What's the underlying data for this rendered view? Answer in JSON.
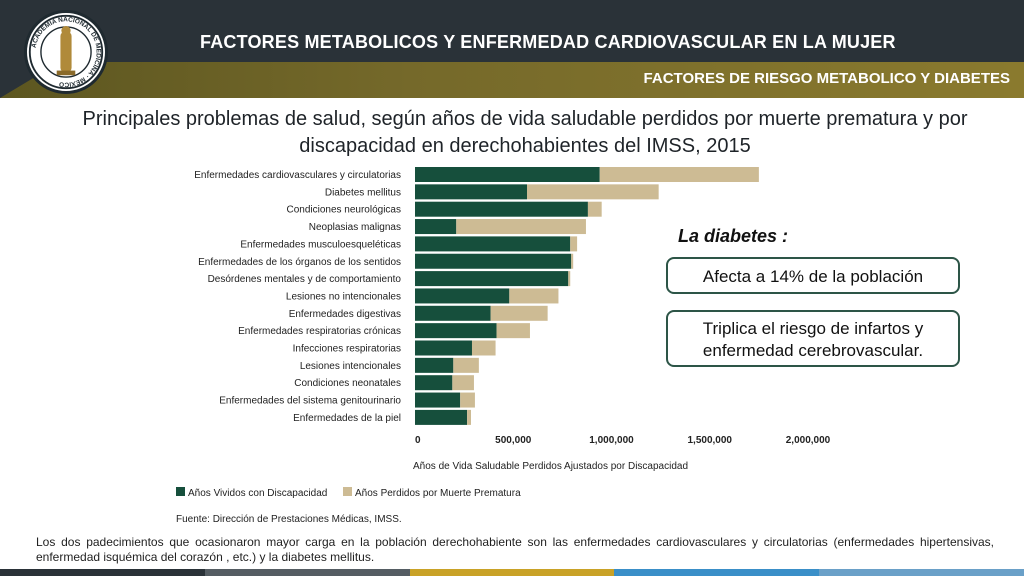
{
  "header": {
    "title": "FACTORES METABOLICOS Y ENFERMEDAD CARDIOVASCULAR EN LA MUJER",
    "subtitle": "FACTORES DE RIESGO METABOLICO Y DIABETES",
    "logo_text": "ACADEMIA NACIONAL DE MEDICINA · MÉXICO"
  },
  "chart_data": {
    "type": "bar",
    "orientation": "horizontal",
    "stacked": true,
    "title": "Principales problemas de salud, según años de vida saludable perdidos por muerte prematura y por discapacidad en derechohabientes del IMSS, 2015",
    "xlabel": "Años de Vida Saludable Perdidos Ajustados por Discapacidad",
    "xlim": [
      0,
      2000000
    ],
    "xticks": [
      "0",
      "500,000",
      "1,000,000",
      "1,500,000",
      "2,000,000"
    ],
    "grid": false,
    "legend_position": "bottom-left",
    "categories": [
      "Enfermedades cardiovasculares y circulatorias",
      "Diabetes mellitus",
      "Condiciones neurológicas",
      "Neoplasias malignas",
      "Enfermedades musculoesqueléticas",
      "Enfermedades de los órganos de los sentidos",
      "Desórdenes mentales y de comportamiento",
      "Lesiones no intencionales",
      "Enfermedades digestivas",
      "Enfermedades respiratorias crónicas",
      "Infecciones respiratorias",
      "Lesiones intencionales",
      "Condiciones neonatales",
      "Enfermedades del sistema genitourinario",
      "Enfermedades de la piel"
    ],
    "series": [
      {
        "name": "Años Vividos con Discapacidad",
        "color": "#164f3c",
        "values": [
          940000,
          570000,
          880000,
          210000,
          790000,
          795000,
          780000,
          480000,
          385000,
          415000,
          290000,
          195000,
          190000,
          230000,
          265000
        ]
      },
      {
        "name": "Años Perdidos por Muerte Prematura",
        "color": "#cdbb94",
        "values": [
          810000,
          670000,
          70000,
          660000,
          35000,
          10000,
          10000,
          250000,
          290000,
          170000,
          120000,
          130000,
          110000,
          75000,
          20000
        ]
      }
    ],
    "source": "Fuente: Dirección de Prestaciones Médicas, IMSS."
  },
  "callouts": {
    "heading": "La diabetes :",
    "item1": "Afecta a 14% de la población",
    "item2": "Triplica el riesgo de infartos y enfermedad cerebrovascular."
  },
  "footnote": "Los dos padecimientos que ocasionaron mayor carga en la población derechohabiente son las enfermedades cardiovasculares y circulatorias (enfermedades hipertensivas, enfermedad isquémica del corazón , etc.) y la diabetes mellitus.",
  "colors": {
    "header_dark": "#2a3238",
    "band_olive": "#75692a",
    "bar_dark": "#164f3c",
    "bar_light": "#cdbb94",
    "callout_border": "#2d5547",
    "bottom_bar": [
      "#2a3238",
      "#555d63",
      "#c9a227",
      "#3a8fc8",
      "#6aa0c8"
    ]
  }
}
